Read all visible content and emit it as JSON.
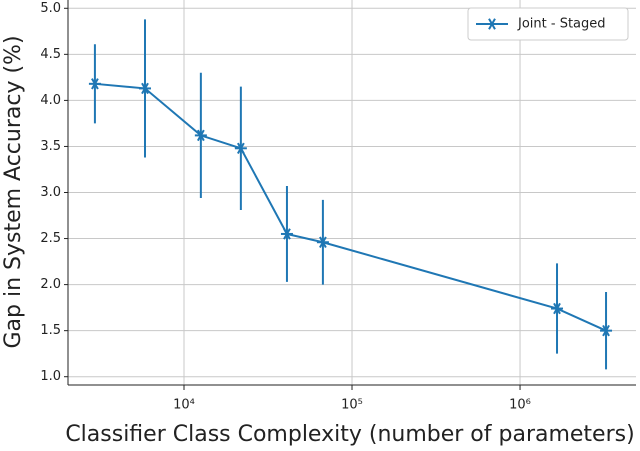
{
  "chart_data": {
    "type": "line",
    "x_label": "Classifier Class Complexity (number of parameters)",
    "y_label": "Gap in System Accuracy (%)",
    "x_log": true,
    "x": [
      2950,
      5860,
      12600,
      21800,
      41000,
      67100,
      1660000,
      3250000
    ],
    "series": [
      {
        "name": "Joint - Staged",
        "color": "#1f77b4",
        "values": [
          4.18,
          4.13,
          3.62,
          3.48,
          2.55,
          2.46,
          1.74,
          1.5
        ],
        "error": [
          0.43,
          0.75,
          0.68,
          0.67,
          0.52,
          0.46,
          0.49,
          0.42
        ]
      }
    ],
    "xlim": [
      2040,
      4900000
    ],
    "ylim": [
      0.91,
      5.09
    ],
    "xticks": [
      {
        "value": 10000,
        "label": "10⁴"
      },
      {
        "value": 100000,
        "label": "10⁵"
      },
      {
        "value": 1000000,
        "label": "10⁶"
      }
    ],
    "yticks": [
      {
        "value": 1,
        "label": "1.0"
      },
      {
        "value": 1.5,
        "label": "1.5"
      },
      {
        "value": 2,
        "label": "2.0"
      },
      {
        "value": 2.5,
        "label": "2.5"
      },
      {
        "value": 3,
        "label": "3.0"
      },
      {
        "value": 3.5,
        "label": "3.5"
      },
      {
        "value": 4,
        "label": "4.0"
      },
      {
        "value": 4.5,
        "label": "4.5"
      },
      {
        "value": 5,
        "label": "5.0"
      }
    ],
    "grid": true,
    "legend": "upper right"
  }
}
